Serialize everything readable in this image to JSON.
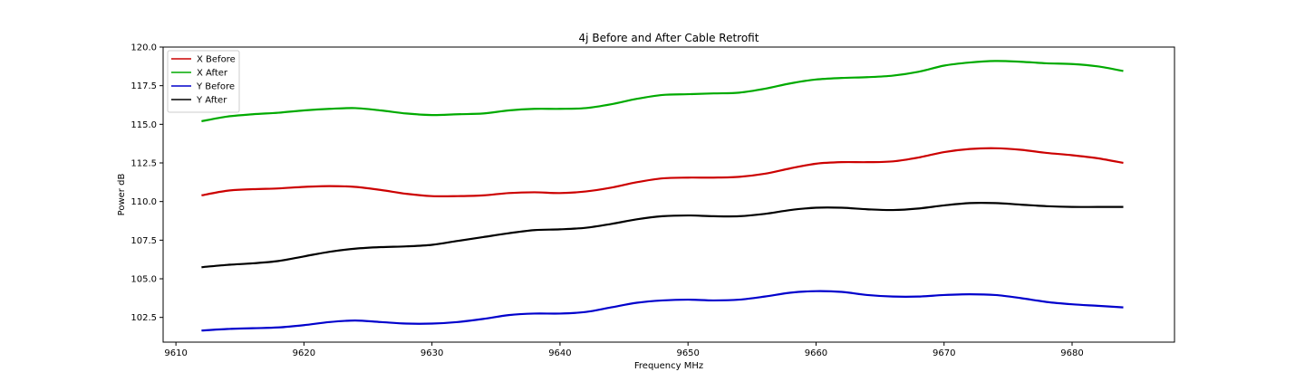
{
  "chart_data": {
    "type": "line",
    "title": "4j Before and After Cable Retrofit",
    "xlabel": "Frequency MHz",
    "ylabel": "Power dB",
    "xlim": [
      9609,
      9688
    ],
    "ylim": [
      100.9,
      120.0
    ],
    "x_ticks": [
      9610,
      9620,
      9630,
      9640,
      9650,
      9660,
      9670,
      9680
    ],
    "y_ticks": [
      102.5,
      105.0,
      107.5,
      110.0,
      112.5,
      115.0,
      117.5,
      120.0
    ],
    "x_tick_labels": [
      "9610",
      "9620",
      "9630",
      "9640",
      "9650",
      "9660",
      "9670",
      "9680"
    ],
    "y_tick_labels": [
      "102.5",
      "105.0",
      "107.5",
      "110.0",
      "112.5",
      "115.0",
      "117.5",
      "120.0"
    ],
    "grid": false,
    "legend_position": "top-left",
    "x": [
      9612,
      9614,
      9616,
      9618,
      9620,
      9622,
      9624,
      9626,
      9628,
      9630,
      9632,
      9634,
      9636,
      9638,
      9640,
      9642,
      9644,
      9646,
      9648,
      9650,
      9652,
      9654,
      9656,
      9658,
      9660,
      9662,
      9664,
      9666,
      9668,
      9670,
      9672,
      9674,
      9676,
      9678,
      9680,
      9682,
      9684
    ],
    "series": [
      {
        "name": "X Before",
        "color": "#cc0000",
        "values": [
          110.4,
          110.7,
          110.8,
          110.85,
          110.95,
          111.0,
          110.95,
          110.75,
          110.5,
          110.35,
          110.35,
          110.4,
          110.55,
          110.6,
          110.55,
          110.65,
          110.9,
          111.25,
          111.5,
          111.55,
          111.55,
          111.6,
          111.8,
          112.15,
          112.45,
          112.55,
          112.55,
          112.6,
          112.85,
          113.2,
          113.4,
          113.45,
          113.35,
          113.15,
          113.0,
          112.8,
          112.5
        ]
      },
      {
        "name": "X After",
        "color": "#00aa00",
        "values": [
          115.2,
          115.5,
          115.65,
          115.75,
          115.9,
          116.0,
          116.05,
          115.9,
          115.7,
          115.6,
          115.65,
          115.7,
          115.9,
          116.0,
          116.0,
          116.05,
          116.3,
          116.65,
          116.9,
          116.95,
          117.0,
          117.05,
          117.3,
          117.65,
          117.9,
          118.0,
          118.05,
          118.15,
          118.4,
          118.8,
          119.0,
          119.1,
          119.05,
          118.95,
          118.9,
          118.75,
          118.45
        ]
      },
      {
        "name": "Y Before",
        "color": "#0000cc",
        "values": [
          101.65,
          101.75,
          101.8,
          101.85,
          102.0,
          102.2,
          102.3,
          102.2,
          102.1,
          102.1,
          102.2,
          102.4,
          102.65,
          102.75,
          102.75,
          102.85,
          103.15,
          103.45,
          103.6,
          103.65,
          103.6,
          103.65,
          103.85,
          104.1,
          104.2,
          104.15,
          103.95,
          103.85,
          103.85,
          103.95,
          104.0,
          103.95,
          103.75,
          103.5,
          103.35,
          103.25,
          103.15
        ]
      },
      {
        "name": "Y After",
        "color": "#000000",
        "values": [
          105.75,
          105.9,
          106.0,
          106.15,
          106.45,
          106.75,
          106.95,
          107.05,
          107.1,
          107.2,
          107.45,
          107.7,
          107.95,
          108.15,
          108.2,
          108.3,
          108.55,
          108.85,
          109.05,
          109.1,
          109.05,
          109.05,
          109.2,
          109.45,
          109.6,
          109.6,
          109.5,
          109.45,
          109.55,
          109.75,
          109.9,
          109.9,
          109.8,
          109.7,
          109.65,
          109.65,
          109.65
        ]
      }
    ]
  }
}
